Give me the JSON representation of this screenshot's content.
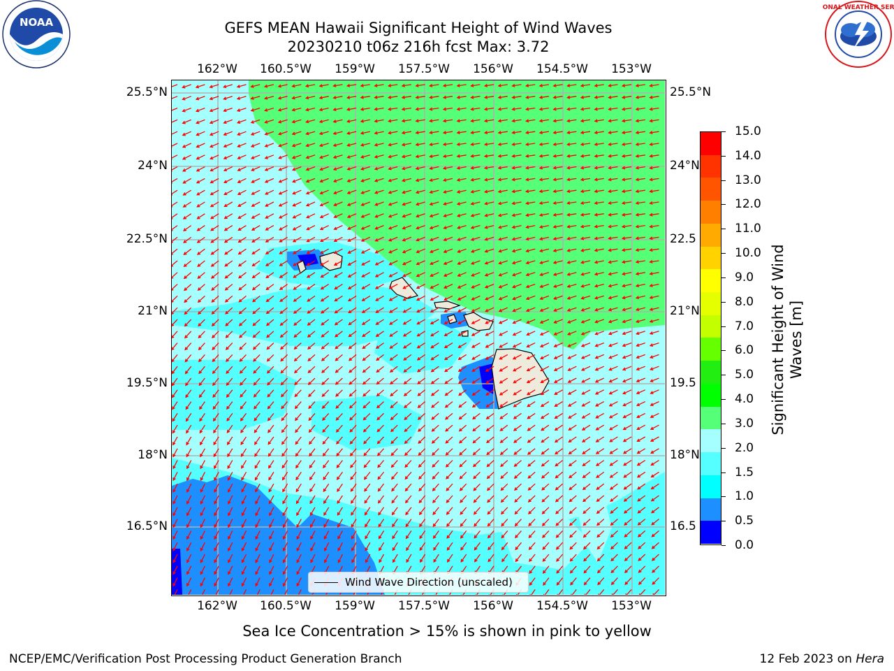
{
  "title": {
    "line1": "GEFS MEAN Hawaii Significant Height of Wind Waves",
    "line2": "20230210 t06z 216h fcst   Max: 3.72"
  },
  "map": {
    "lon_labels": [
      "162°W",
      "160.5°W",
      "159°W",
      "157.5°W",
      "156°W",
      "154.5°W",
      "153°W"
    ],
    "lat_labels_left": [
      "25.5°N",
      "24°N",
      "22.5°N",
      "21°N",
      "19.5°N",
      "18°N",
      "16.5°N"
    ],
    "lat_labels_right": [
      "25.5°N",
      "24°N",
      "22.5",
      "21°N",
      "19.5",
      "18°N",
      "16.5"
    ],
    "legend_label": "Wind Wave Direction (unscaled)",
    "arrow_color": "#ff0000",
    "grid_color": "#b0b0b0",
    "land_color": "#efebdc"
  },
  "colorbar": {
    "label_line1": "Significant Height of Wind",
    "label_line2": "Waves [m]",
    "ticks": [
      "15.0",
      "14.0",
      "13.0",
      "12.0",
      "11.0",
      "10.0",
      "9.0",
      "8.0",
      "7.0",
      "6.0",
      "5.0",
      "4.0",
      "3.0",
      "2.0",
      "1.5",
      "1.0",
      "0.5",
      "0.0"
    ],
    "colors_top_to_bottom": [
      "#ff0000",
      "#ff3300",
      "#ff5500",
      "#ff7f00",
      "#ffaa00",
      "#ffd200",
      "#ffff00",
      "#e6ff00",
      "#c4ff00",
      "#66ff00",
      "#22ee11",
      "#00ff00",
      "#55ff77",
      "#a6ffff",
      "#55ffff",
      "#00ffff",
      "#1e8fff",
      "#0000ff"
    ]
  },
  "notes": {
    "ice": "Sea Ice Concentration > 15% is shown in pink to yellow"
  },
  "footer": {
    "left": "NCEP/EMC/Verification Post Processing Product Generation Branch",
    "right_prefix": "12 Feb 2023 on ",
    "right_host": "Hera"
  },
  "logos": {
    "left": "NOAA",
    "right": "NATIONAL WEATHER SERVICE"
  }
}
